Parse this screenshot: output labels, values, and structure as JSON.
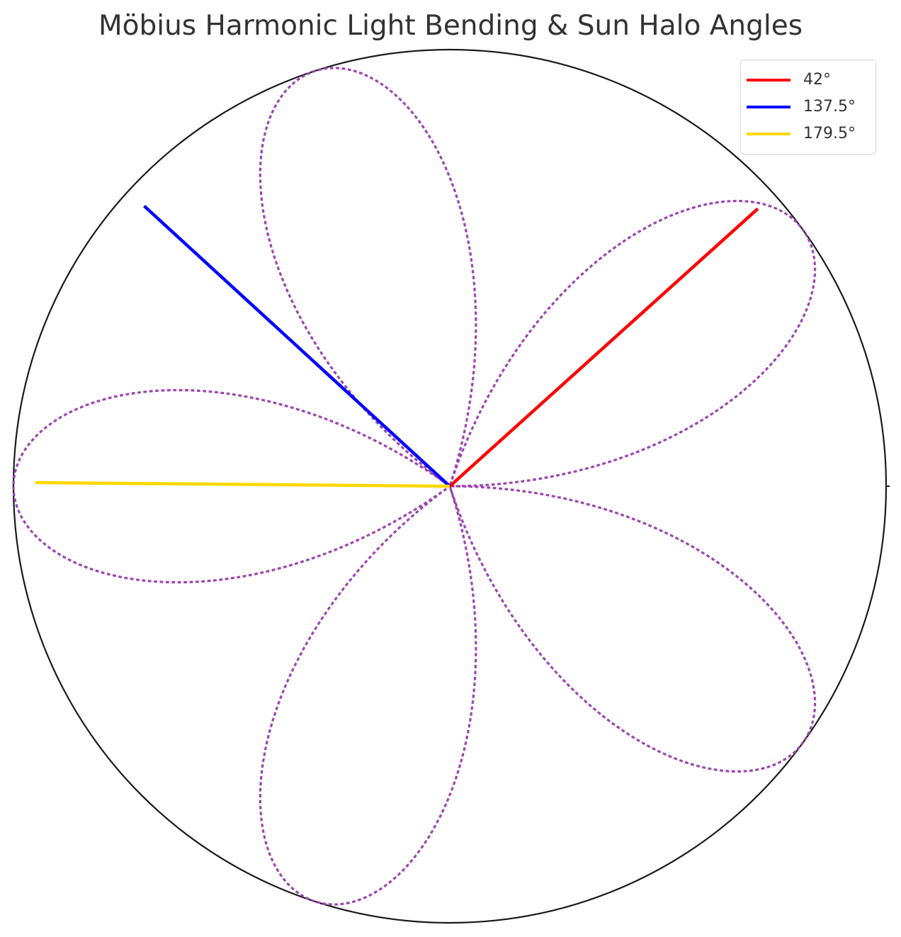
{
  "chart_data": {
    "type": "line",
    "projection": "polar",
    "title": "Möbius Harmonic Light Bending & Sun Halo Angles",
    "rlim": [
      0,
      1
    ],
    "grid": false,
    "theta_tick_labels": false,
    "r_tick_labels": false,
    "legend": {
      "placement": "top-right"
    },
    "series": [
      {
        "name": "",
        "kind": "curve",
        "equation": "r = |sin(2.5 θ)|",
        "theta_range_deg": [
          0,
          720
        ],
        "style": "dotted",
        "color": "#9c45b0"
      },
      {
        "name": "42°",
        "kind": "ray",
        "theta_deg": 42,
        "r": 0.95,
        "color": "#ff0000"
      },
      {
        "name": "137.5°",
        "kind": "ray",
        "theta_deg": 137.5,
        "r": 0.95,
        "color": "#0000ff"
      },
      {
        "name": "179.5°",
        "kind": "ray",
        "theta_deg": 179.5,
        "r": 0.95,
        "color": "#ffd700"
      }
    ]
  }
}
